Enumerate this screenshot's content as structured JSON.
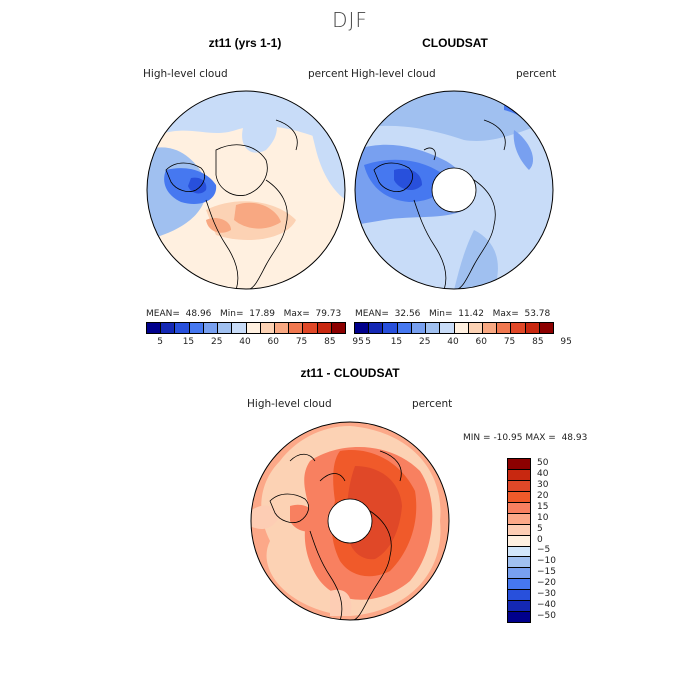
{
  "figure": {
    "season": "DJF"
  },
  "panels": [
    {
      "id": "model",
      "title": "zt11 (yrs 1-1)",
      "variable_label": "High-level cloud",
      "units_label": "percent",
      "stats": {
        "mean_label": "MEAN=",
        "mean": "48.96",
        "min_label": "Min=",
        "min": "17.89",
        "max_label": "Max=",
        "max": "79.73"
      },
      "colorbar": {
        "colors": [
          "#00008c",
          "#1428b4",
          "#2850dc",
          "#4678f0",
          "#78a0f0",
          "#a0c0f0",
          "#c8dcf8",
          "#fff0e0",
          "#fcd2b4",
          "#f8a882",
          "#f07850",
          "#e04828",
          "#c82810",
          "#8c0000"
        ],
        "tick_labels": [
          "5",
          "15",
          "25",
          "40",
          "60",
          "75",
          "85",
          "95"
        ]
      }
    },
    {
      "id": "obs",
      "title": "CLOUDSAT",
      "variable_label": "High-level cloud",
      "units_label": "percent",
      "stats": {
        "mean_label": "MEAN=",
        "mean": "32.56",
        "min_label": "Min=",
        "min": "11.42",
        "max_label": "Max=",
        "max": "53.78"
      },
      "colorbar": {
        "colors": [
          "#00008c",
          "#1428b4",
          "#2850dc",
          "#4678f0",
          "#78a0f0",
          "#a0c0f0",
          "#c8dcf8",
          "#fff0e0",
          "#fcd2b4",
          "#f8a882",
          "#f07850",
          "#e04828",
          "#c82810",
          "#8c0000"
        ],
        "tick_labels": [
          "5",
          "15",
          "25",
          "40",
          "60",
          "75",
          "85",
          "95"
        ]
      }
    },
    {
      "id": "diff",
      "title": "zt11 - CLOUDSAT",
      "variable_label": "High-level cloud",
      "units_label": "percent",
      "stats": {
        "min_label": "MIN =",
        "min": "-10.95",
        "max_label": "MAX =",
        "max": "48.93"
      },
      "colorbar": {
        "colors": [
          "#8c0000",
          "#c82810",
          "#e04828",
          "#f05a2a",
          "#f88060",
          "#fca888",
          "#fdcdb4",
          "#fff0e0",
          "#d2e6fa",
          "#a0c0f0",
          "#78a0f0",
          "#4678f0",
          "#2850dc",
          "#1428b4",
          "#00008c"
        ],
        "tick_labels": [
          "50",
          "40",
          "30",
          "20",
          "15",
          "10",
          "5",
          "0",
          "−5",
          "−10",
          "−15",
          "−20",
          "−30",
          "−40",
          "−50"
        ]
      }
    }
  ]
}
